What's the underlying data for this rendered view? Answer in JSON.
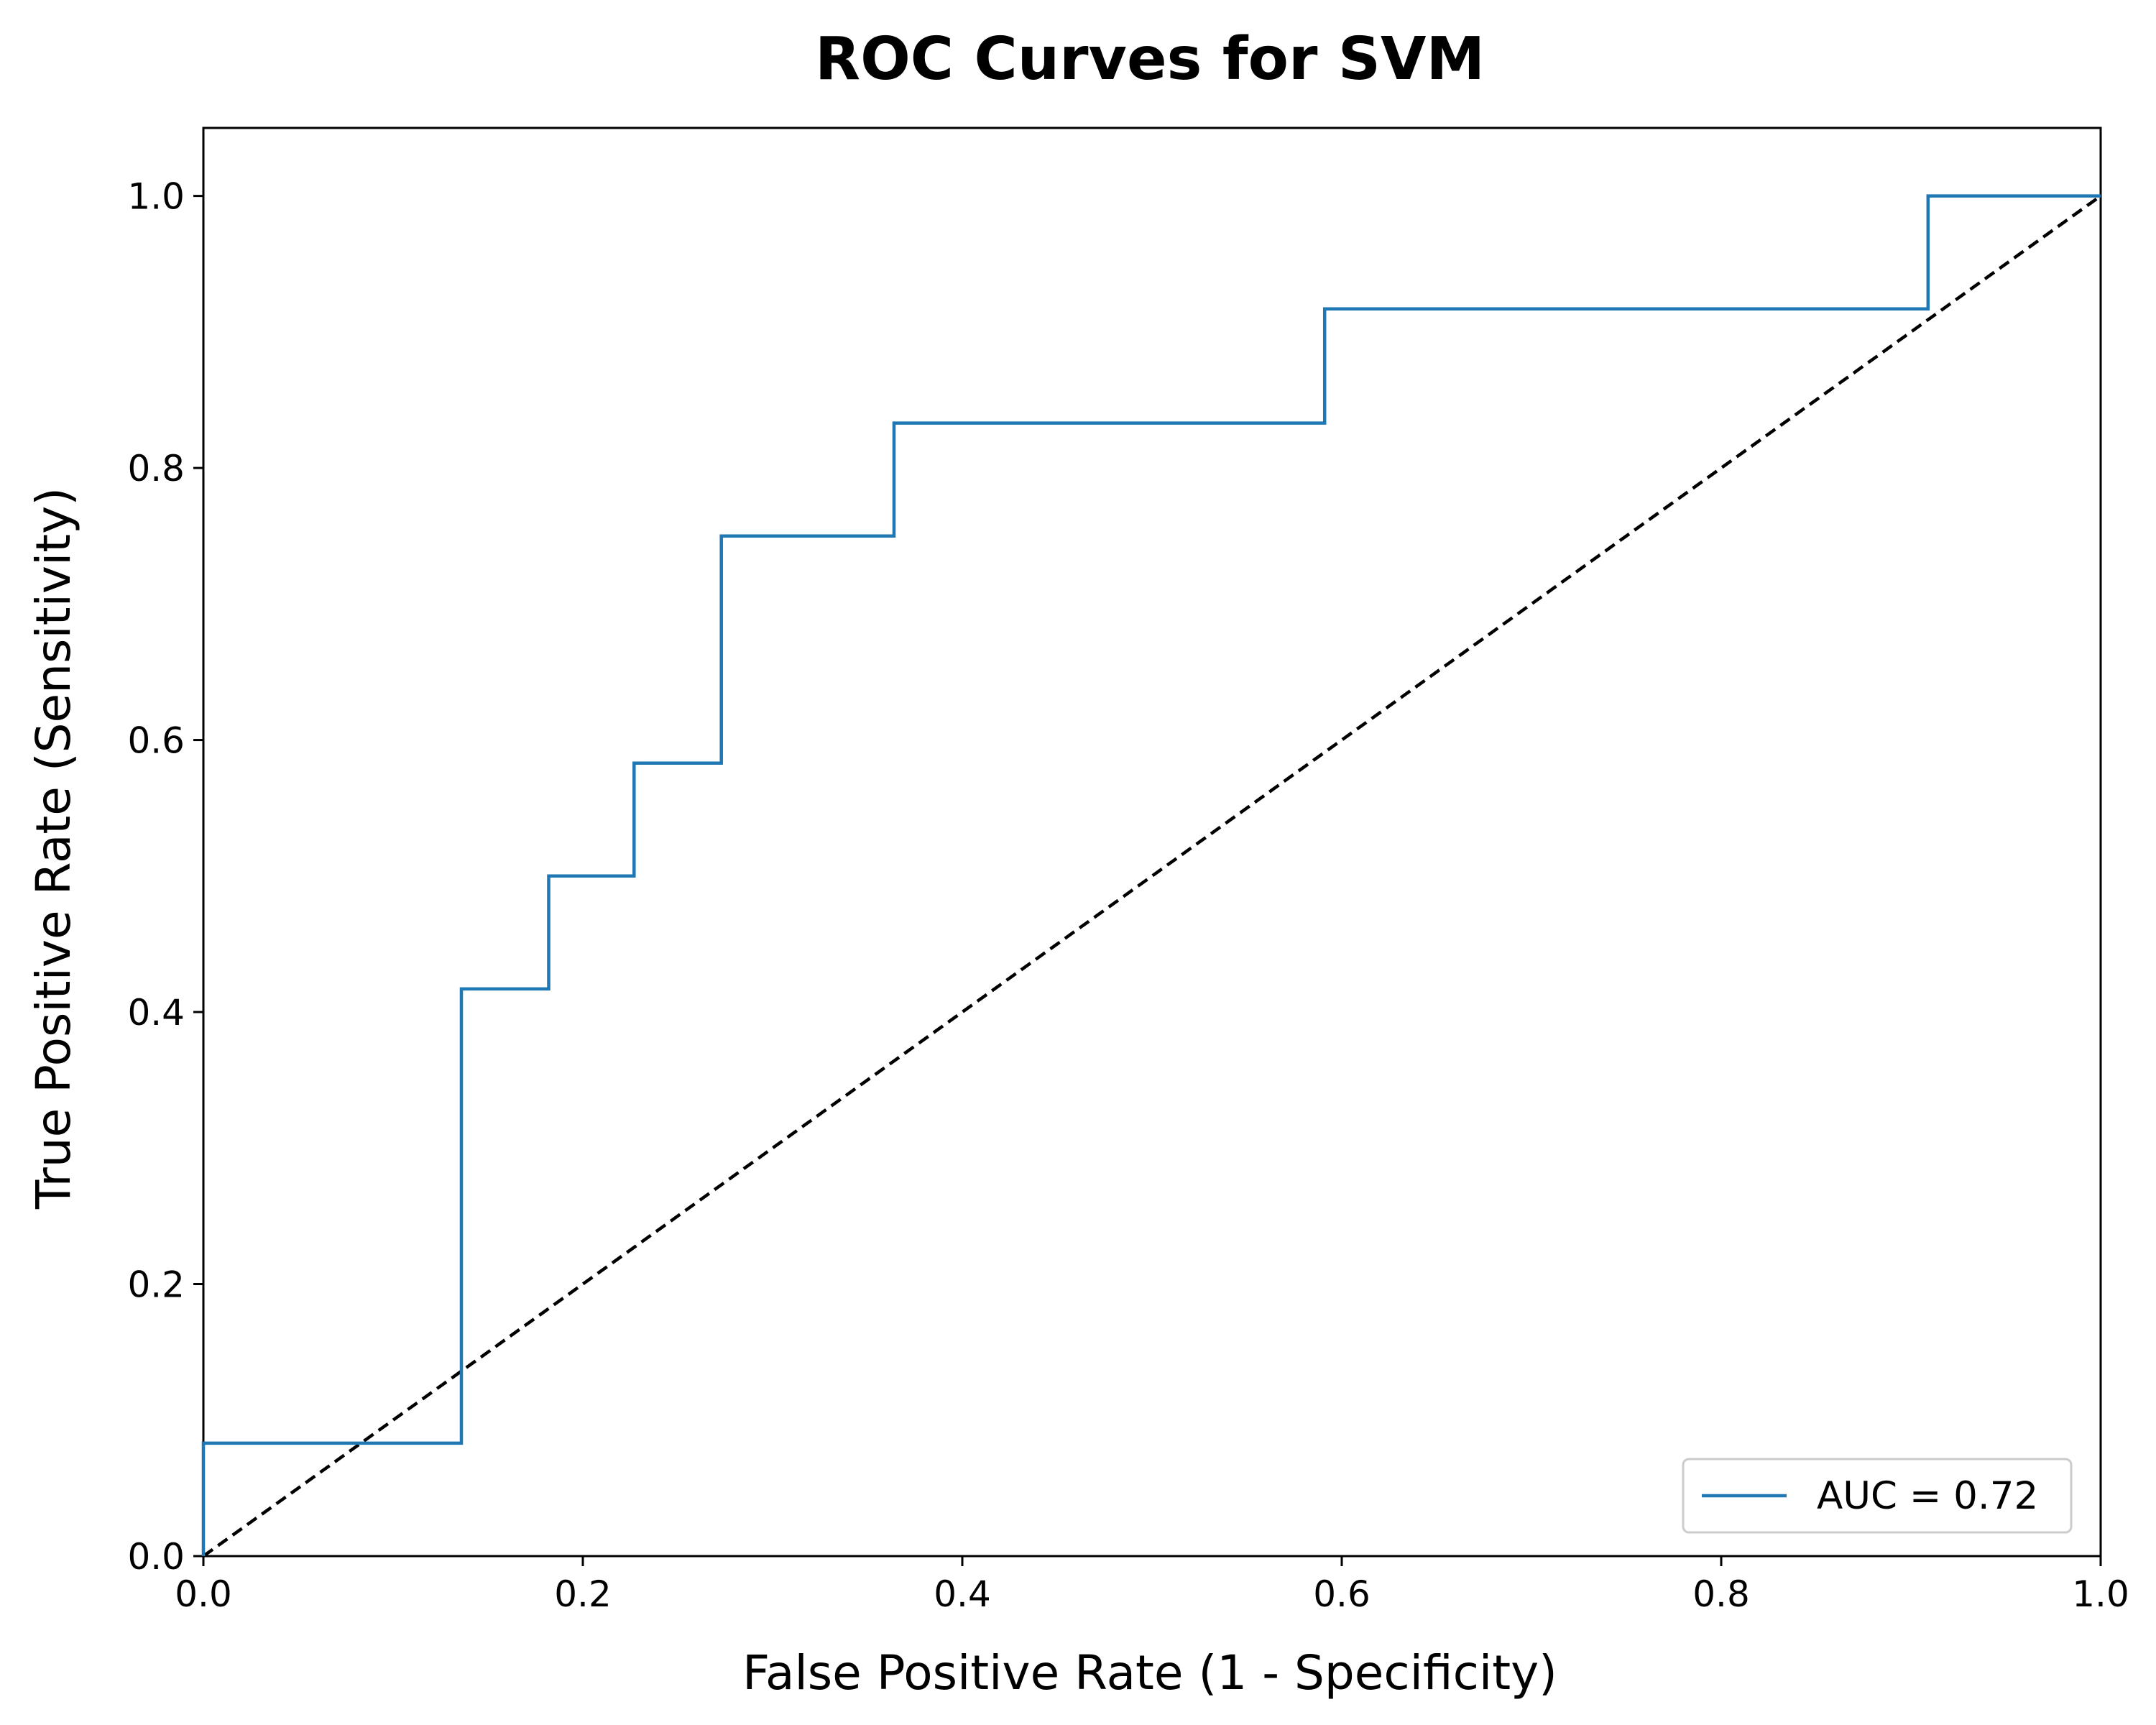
{
  "chart_data": {
    "type": "line",
    "title": "ROC Curves for SVM",
    "xlabel": "False Positive Rate (1 - Specificity)",
    "ylabel": "True Positive Rate (Sensitivity)",
    "xlim": [
      0,
      1.0
    ],
    "ylim": [
      0,
      1.05
    ],
    "x_ticks": [
      "0.0",
      "0.2",
      "0.4",
      "0.6",
      "0.8",
      "1.0"
    ],
    "y_ticks": [
      "0.0",
      "0.2",
      "0.4",
      "0.6",
      "0.8",
      "1.0"
    ],
    "grid": false,
    "legend_position": "lower-right",
    "series": [
      {
        "name": "AUC = 0.72",
        "color": "#1f77b4",
        "style": "solid",
        "step": true,
        "x": [
          0.0,
          0.0,
          0.136,
          0.136,
          0.182,
          0.182,
          0.227,
          0.227,
          0.273,
          0.273,
          0.364,
          0.364,
          0.591,
          0.591,
          0.909,
          0.909,
          1.0
        ],
        "y": [
          0.0,
          0.083,
          0.083,
          0.417,
          0.417,
          0.5,
          0.5,
          0.583,
          0.583,
          0.75,
          0.75,
          0.833,
          0.833,
          0.917,
          0.917,
          1.0,
          1.0
        ]
      }
    ],
    "reference_line": {
      "color": "#000000",
      "style": "dashed",
      "x": [
        0,
        1
      ],
      "y": [
        0,
        1
      ]
    }
  }
}
